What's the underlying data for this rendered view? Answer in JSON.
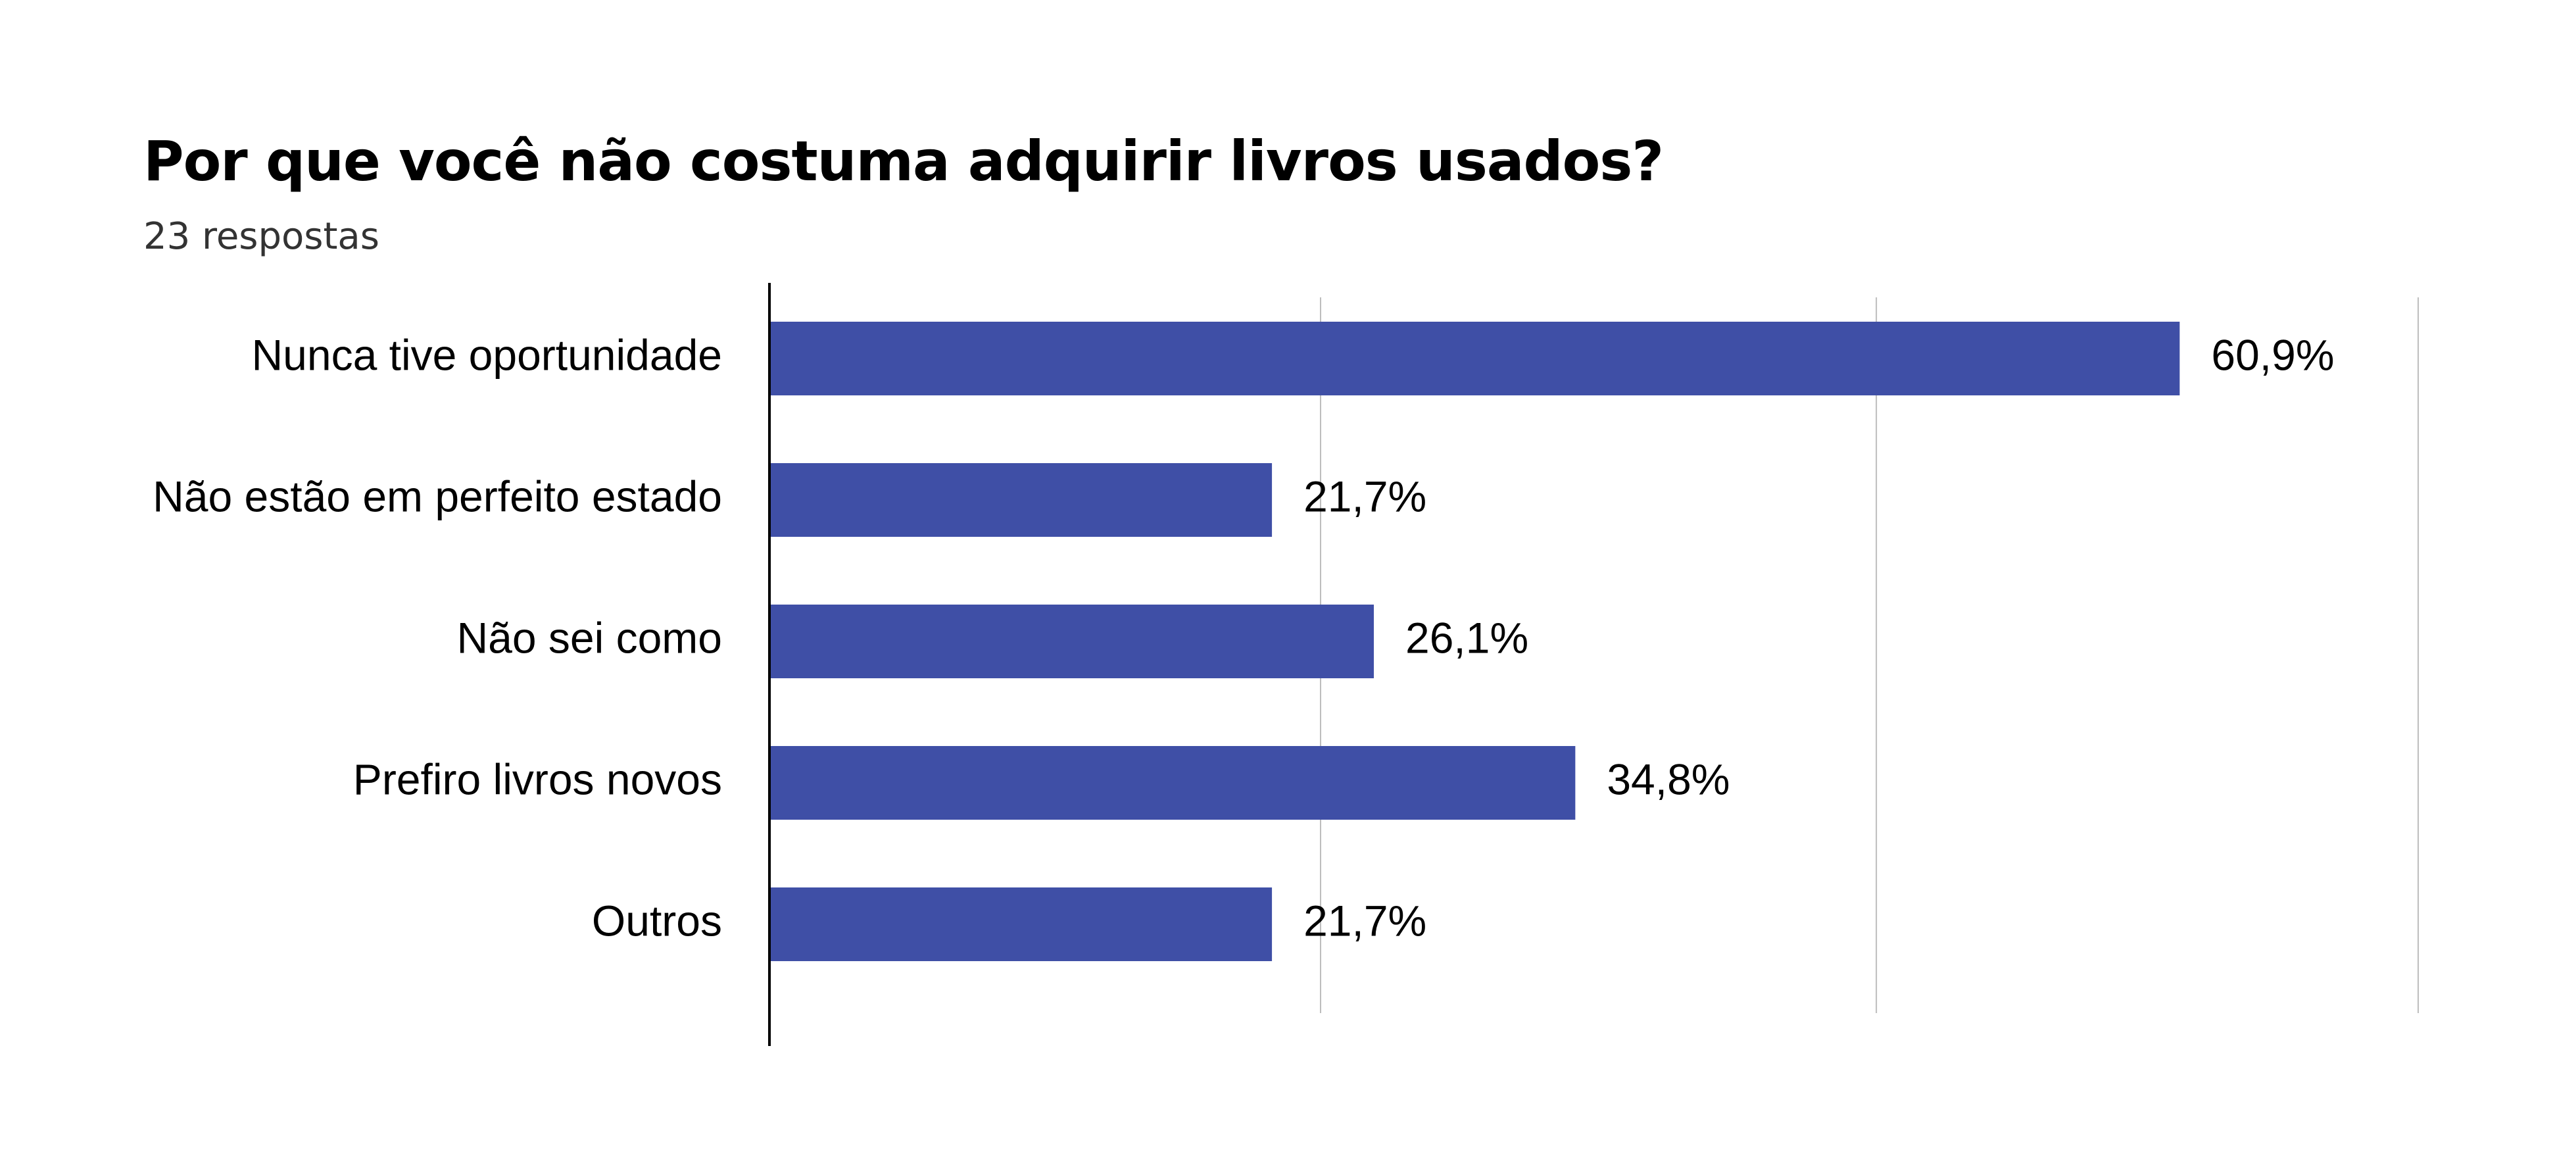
{
  "chart_data": {
    "type": "bar",
    "orientation": "horizontal",
    "title": "Por que você não costuma adquirir livros usados?",
    "subtitle": "23 respostas",
    "categories": [
      "Nunca tive oportunidade",
      "Não estão em perfeito estado",
      "Não sei como",
      "Prefiro livros novos",
      "Outros"
    ],
    "values": [
      60.9,
      21.7,
      26.1,
      34.8,
      21.7
    ],
    "value_labels": [
      "60,9%",
      "21,7%",
      "26,1%",
      "34,8%",
      "21,7%"
    ],
    "xlim": [
      0,
      71
    ],
    "gridlines": [
      0,
      23.8,
      47.8,
      71.2
    ],
    "grid": true,
    "legend": "none",
    "colors": {
      "bar": "#3f4fa6",
      "gridline": "#bdbdbd",
      "axis": "#000000"
    }
  }
}
